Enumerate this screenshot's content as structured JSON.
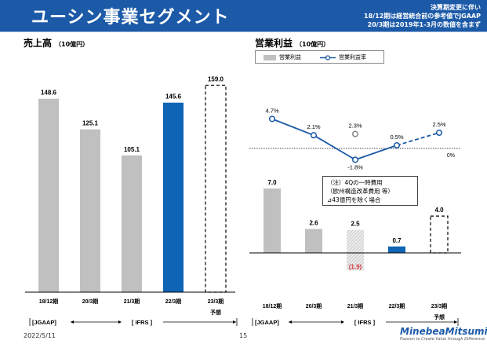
{
  "header": {
    "title": "ユーシン事業セグメント",
    "notes": [
      "決算期変更に伴い",
      "18/12期は経営統合前の参考値でJGAAP",
      "20/3期は2019年1-3月の数値を含まず"
    ]
  },
  "sections": {
    "sales_title": "売上高",
    "sales_unit": "（10億円）",
    "profit_title": "営業利益",
    "profit_unit": "（10億円）"
  },
  "legend": {
    "bar": "営業利益",
    "line": "営業利益率"
  },
  "annotation": [
    "（注）4Qの一時費用",
    "（欧州構造改革費用 等）",
    "⊿43億円を除く場合"
  ],
  "axis_brackets": {
    "jgaap": "[JGAAP]",
    "ifrs": "[ IFRS ]"
  },
  "forecast_label": "予想",
  "footer": {
    "date": "2022/5/11",
    "page": "15"
  },
  "logo": {
    "name": "MinebeaMitsumi",
    "tagline": "Passion to Create Value through Difference"
  },
  "colors": {
    "header": "#1c5aa8",
    "gray_bar": "#c0c0c0",
    "blue_bar": "#0f64b5",
    "line": "#1c5aa8",
    "negative": "#d9363e"
  },
  "chart_data": [
    {
      "type": "bar",
      "title": "売上高",
      "unit": "10億円",
      "categories": [
        "18/12期",
        "20/3期",
        "21/3期",
        "22/3期",
        "23/3期"
      ],
      "values": [
        148.6,
        125.1,
        105.1,
        145.6,
        159.0
      ],
      "labels": [
        "148.6",
        "125.1",
        "105.1",
        "145.6",
        "159.0"
      ],
      "styles": [
        "gray",
        "gray",
        "gray",
        "blue",
        "forecast"
      ],
      "ylim": [
        0,
        175
      ]
    },
    {
      "type": "bar+line",
      "title": "営業利益",
      "unit": "10億円",
      "categories": [
        "18/12期",
        "20/3期",
        "21/3期",
        "22/3期",
        "23/3期"
      ],
      "profit": [
        7.0,
        2.6,
        2.5,
        0.7,
        4.0
      ],
      "profit_labels": [
        "7.0",
        "2.6",
        "2.5",
        "0.7",
        "4.0"
      ],
      "profit_styles": [
        "gray",
        "gray",
        "hatched",
        "blue",
        "forecast"
      ],
      "actual_profit": -1.9,
      "actual_profit_label": "(1.9)",
      "margin": [
        4.7,
        2.1,
        -1.8,
        0.5,
        2.5
      ],
      "margin_labels": [
        "4.7%",
        "2.1%",
        "-1.8%",
        "0.5%",
        "2.5%"
      ],
      "adjusted_margin": 2.3,
      "adjusted_margin_label": "2.3%",
      "zero_label": "0%",
      "ylim": [
        -2.5,
        9
      ]
    }
  ]
}
